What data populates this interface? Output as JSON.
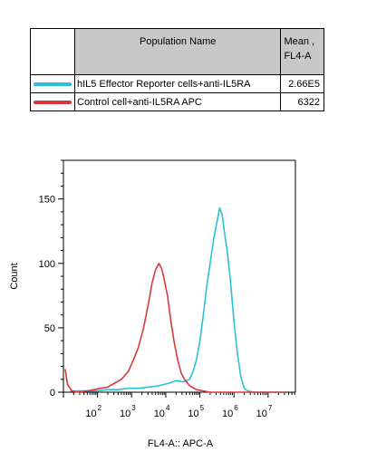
{
  "legend": {
    "header_name": "Population Name",
    "header_mean_line1": "Mean ,",
    "header_mean_line2": "FL4-A",
    "rows": [
      {
        "label": "hIL5 Effector Reporter cells+anti-IL5RA",
        "mean": "2.66E5",
        "color": "#29c1d6"
      },
      {
        "label": "Control cell+anti-IL5RA APC",
        "mean": "6322",
        "color": "#d83a3a"
      }
    ]
  },
  "chart_data": {
    "type": "line",
    "xlabel": "FL4-A:: APC-A",
    "ylabel": "Count",
    "x_scale": "log",
    "x_ticks": [
      "10^2",
      "10^3",
      "10^4",
      "10^5",
      "10^6",
      "10^7"
    ],
    "ylim": [
      0,
      180
    ],
    "y_ticks": [
      0,
      50,
      100,
      150
    ],
    "series": [
      {
        "name": "hIL5 Effector Reporter cells+anti-IL5RA",
        "color": "#29c1d6",
        "points": [
          [
            1.2,
            1
          ],
          [
            1.5,
            1
          ],
          [
            1.8,
            1
          ],
          [
            2.0,
            1
          ],
          [
            2.3,
            2
          ],
          [
            2.6,
            2
          ],
          [
            2.9,
            3
          ],
          [
            3.2,
            3
          ],
          [
            3.5,
            4
          ],
          [
            3.8,
            5
          ],
          [
            4.1,
            7
          ],
          [
            4.3,
            9
          ],
          [
            4.5,
            8
          ],
          [
            4.7,
            10
          ],
          [
            4.8,
            16
          ],
          [
            4.9,
            25
          ],
          [
            5.0,
            40
          ],
          [
            5.1,
            60
          ],
          [
            5.2,
            82
          ],
          [
            5.3,
            100
          ],
          [
            5.4,
            118
          ],
          [
            5.5,
            132
          ],
          [
            5.58,
            143
          ],
          [
            5.65,
            138
          ],
          [
            5.72,
            124
          ],
          [
            5.8,
            110
          ],
          [
            5.9,
            85
          ],
          [
            6.0,
            55
          ],
          [
            6.1,
            30
          ],
          [
            6.2,
            12
          ],
          [
            6.3,
            3
          ],
          [
            6.4,
            1
          ],
          [
            6.6,
            0
          ],
          [
            7.5,
            0
          ]
        ]
      },
      {
        "name": "Control cell+anti-IL5RA APC",
        "color": "#d83a3a",
        "points": [
          [
            1.05,
            18
          ],
          [
            1.12,
            6
          ],
          [
            1.25,
            1
          ],
          [
            1.4,
            0
          ],
          [
            1.7,
            1
          ],
          [
            1.9,
            2
          ],
          [
            2.1,
            3
          ],
          [
            2.3,
            4
          ],
          [
            2.5,
            7
          ],
          [
            2.7,
            10
          ],
          [
            2.9,
            16
          ],
          [
            3.05,
            25
          ],
          [
            3.2,
            35
          ],
          [
            3.35,
            50
          ],
          [
            3.5,
            70
          ],
          [
            3.6,
            85
          ],
          [
            3.7,
            95
          ],
          [
            3.8,
            100
          ],
          [
            3.88,
            96
          ],
          [
            3.95,
            88
          ],
          [
            4.05,
            75
          ],
          [
            4.15,
            55
          ],
          [
            4.25,
            38
          ],
          [
            4.35,
            25
          ],
          [
            4.45,
            15
          ],
          [
            4.55,
            10
          ],
          [
            4.7,
            5
          ],
          [
            4.9,
            2
          ],
          [
            5.1,
            1
          ],
          [
            5.3,
            0
          ],
          [
            6.0,
            0
          ],
          [
            7.5,
            0
          ]
        ]
      }
    ]
  }
}
